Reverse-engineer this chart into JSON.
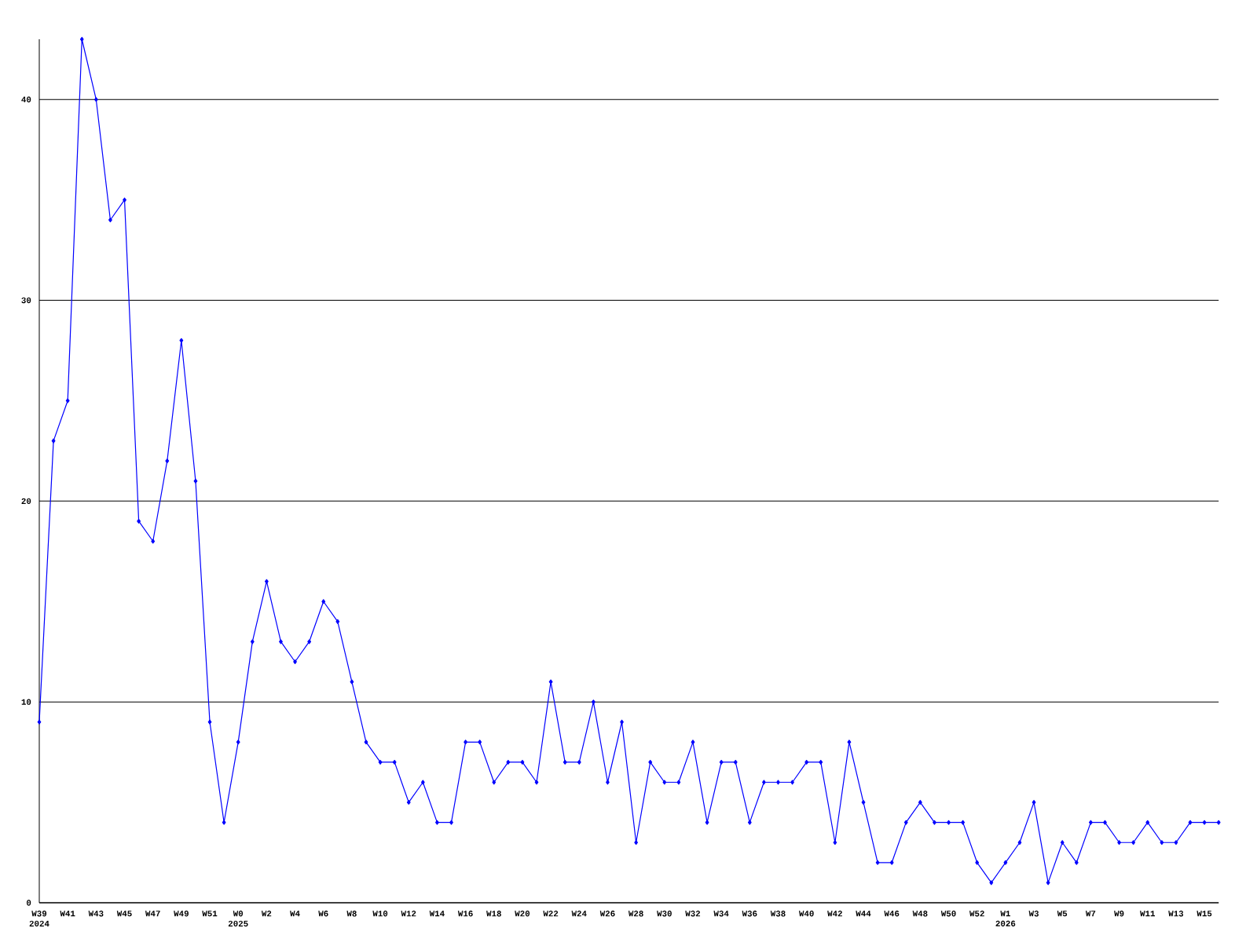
{
  "chart_data": {
    "type": "line",
    "categories": [
      "W39 2024",
      null,
      "W41",
      null,
      "W43",
      null,
      "W45",
      null,
      "W47",
      null,
      "W49",
      null,
      "W51",
      null,
      "W0 2025",
      null,
      "W2",
      null,
      "W4",
      null,
      "W6",
      null,
      "W8",
      null,
      "W10",
      null,
      "W12",
      null,
      "W14",
      null,
      "W16",
      null,
      "W18",
      null,
      "W20",
      null,
      "W22",
      null,
      "W24",
      null,
      "W26",
      null,
      "W28",
      null,
      "W30",
      null,
      "W32",
      null,
      "W34",
      null,
      "W36",
      null,
      "W38",
      null,
      "W40",
      null,
      "W42",
      null,
      "W44",
      null,
      "W46",
      null,
      "W48",
      null,
      "W50",
      null,
      "W52",
      null,
      "W1 2026",
      null,
      "W3",
      null,
      "W5",
      null,
      "W7",
      null,
      "W9",
      null,
      "W11",
      null,
      "W13",
      null,
      "W15",
      null
    ],
    "series": [
      {
        "color": "#0000ff",
        "values": [
          9,
          23,
          25,
          43,
          40,
          34,
          35,
          19,
          18,
          22,
          28,
          21,
          9,
          4,
          8,
          13,
          16,
          13,
          12,
          13,
          15,
          14,
          11,
          8,
          7,
          7,
          5,
          6,
          4,
          4,
          8,
          8,
          6,
          7,
          7,
          6,
          11,
          7,
          7,
          10,
          6,
          9,
          3,
          7,
          6,
          6,
          8,
          4,
          7,
          7,
          4,
          6,
          6,
          6,
          7,
          7,
          3,
          8,
          5,
          2,
          2,
          4,
          5,
          4,
          4,
          4,
          2,
          1,
          2,
          3,
          5,
          1,
          3,
          2,
          4,
          4,
          3,
          3,
          4,
          3,
          3,
          4,
          4,
          4
        ]
      }
    ],
    "ylim": [
      0,
      43
    ],
    "yticks": [
      0,
      10,
      20,
      30,
      40
    ],
    "grid": "y",
    "marker": "diamond",
    "line_style": "solid"
  }
}
